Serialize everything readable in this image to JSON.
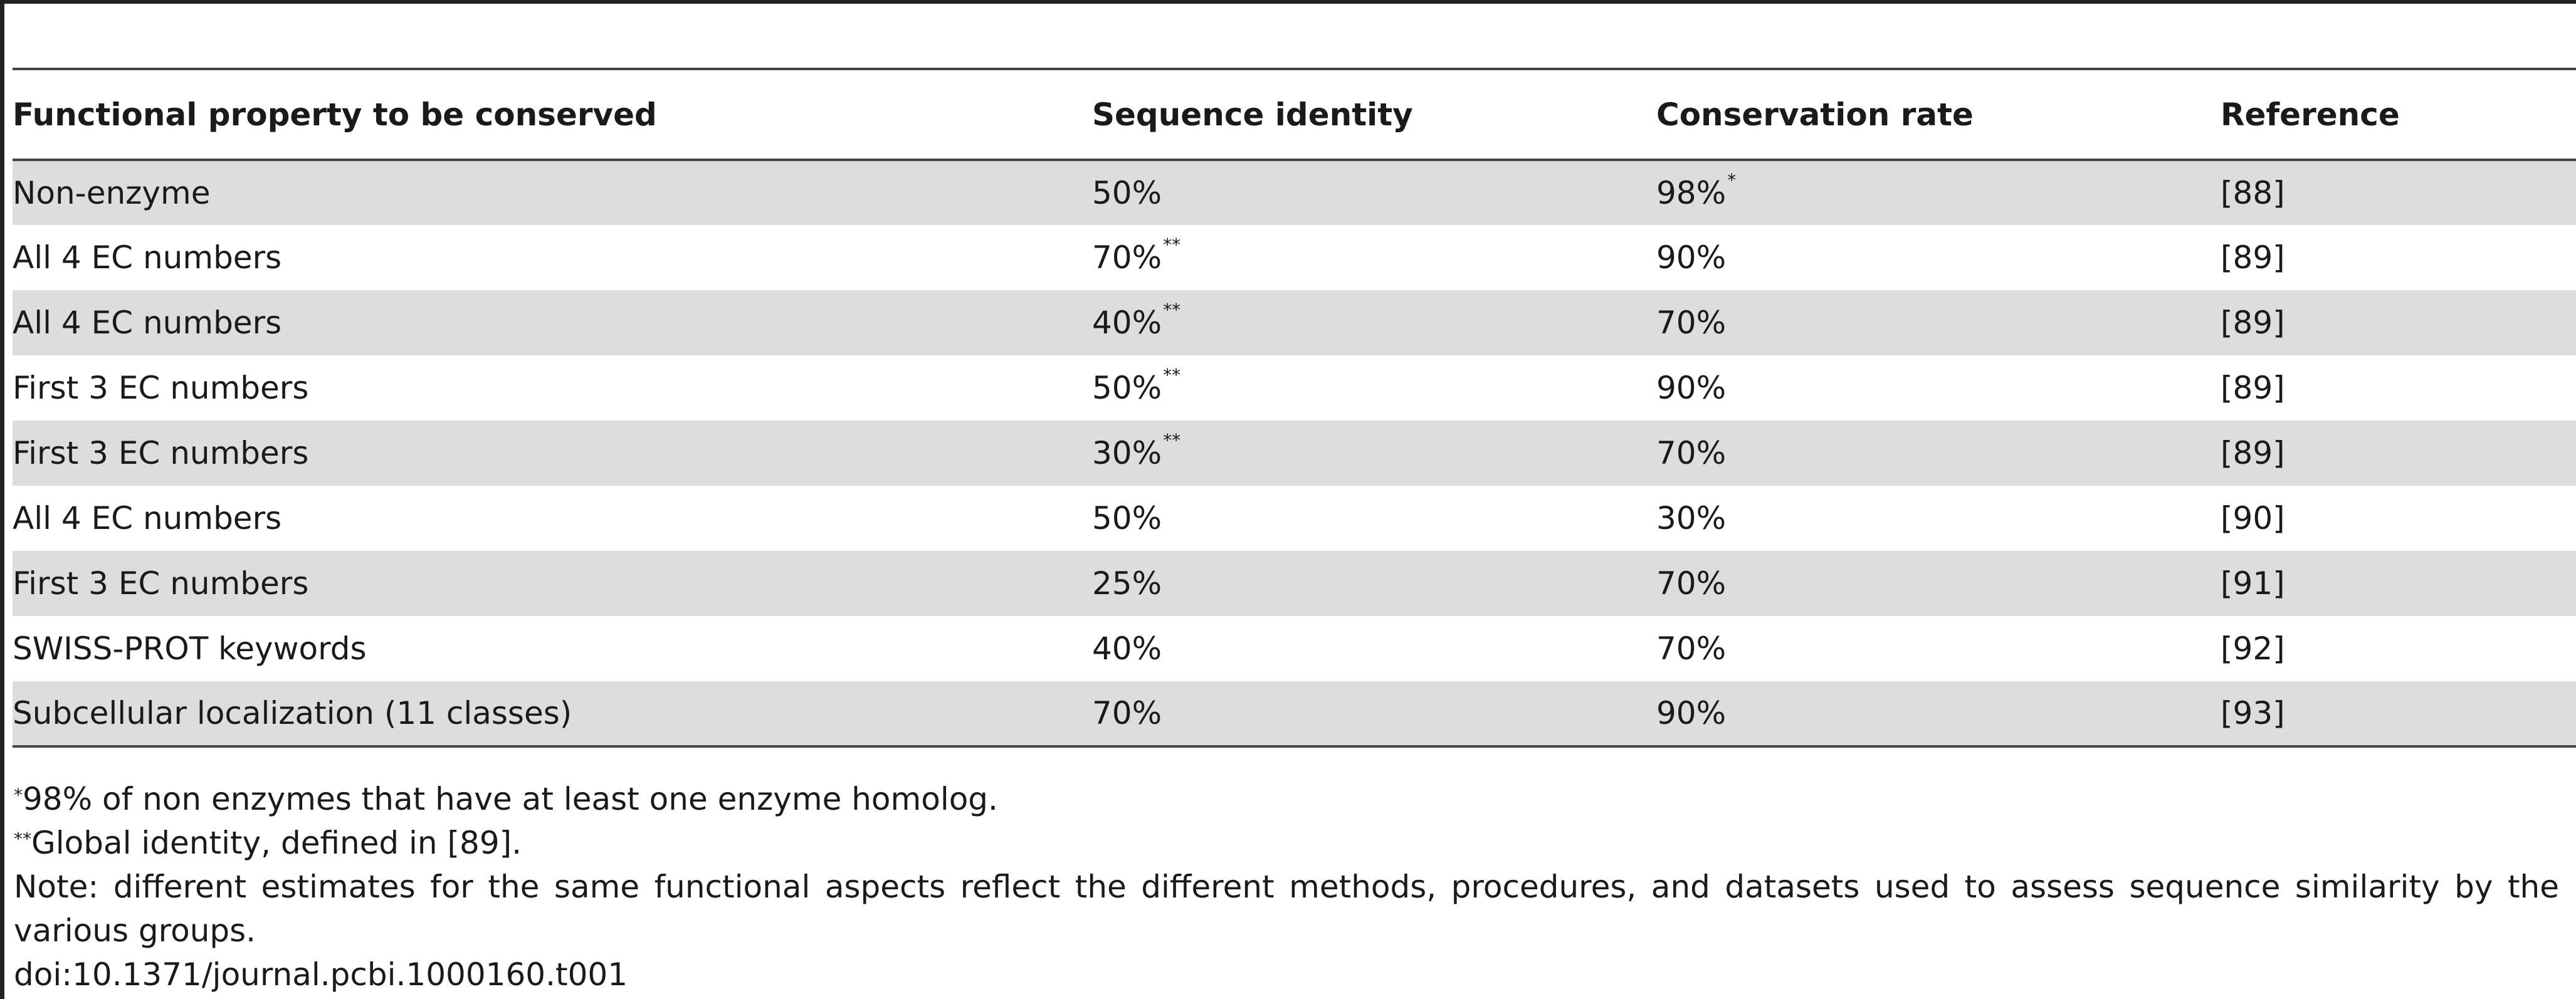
{
  "table": {
    "headers": [
      "Functional property to be conserved",
      "Sequence identity",
      "Conservation rate",
      "Reference"
    ],
    "rows": [
      {
        "property": "Non-enzyme",
        "identity": "50%",
        "identity_mark": "",
        "rate": "98%",
        "rate_mark": "*",
        "reference": "[88]"
      },
      {
        "property": "All 4 EC numbers",
        "identity": "70%",
        "identity_mark": "**",
        "rate": "90%",
        "rate_mark": "",
        "reference": "[89]"
      },
      {
        "property": "All 4 EC numbers",
        "identity": "40%",
        "identity_mark": "**",
        "rate": "70%",
        "rate_mark": "",
        "reference": "[89]"
      },
      {
        "property": "First 3 EC numbers",
        "identity": "50%",
        "identity_mark": "**",
        "rate": "90%",
        "rate_mark": "",
        "reference": "[89]"
      },
      {
        "property": "First 3 EC numbers",
        "identity": "30%",
        "identity_mark": "**",
        "rate": "70%",
        "rate_mark": "",
        "reference": "[89]"
      },
      {
        "property": "All 4 EC numbers",
        "identity": "50%",
        "identity_mark": "",
        "rate": "30%",
        "rate_mark": "",
        "reference": "[90]"
      },
      {
        "property": "First 3 EC numbers",
        "identity": "25%",
        "identity_mark": "",
        "rate": "70%",
        "rate_mark": "",
        "reference": "[91]"
      },
      {
        "property": "SWISS-PROT keywords",
        "identity": "40%",
        "identity_mark": "",
        "rate": "70%",
        "rate_mark": "",
        "reference": "[92]"
      },
      {
        "property": "Subcellular localization (11 classes)",
        "identity": "70%",
        "identity_mark": "",
        "rate": "90%",
        "rate_mark": "",
        "reference": "[93]"
      }
    ]
  },
  "footnotes": {
    "fn1_mark": "*",
    "fn1_text": "98% of non enzymes that have at least one enzyme homolog.",
    "fn2_mark": "**",
    "fn2_text": "Global identity, defined in [89].",
    "note": "Note: different estimates for the same functional aspects reflect the different methods, procedures, and datasets used to assess sequence similarity by the various groups.",
    "doi": "doi:10.1371/journal.pcbi.1000160.t001"
  }
}
